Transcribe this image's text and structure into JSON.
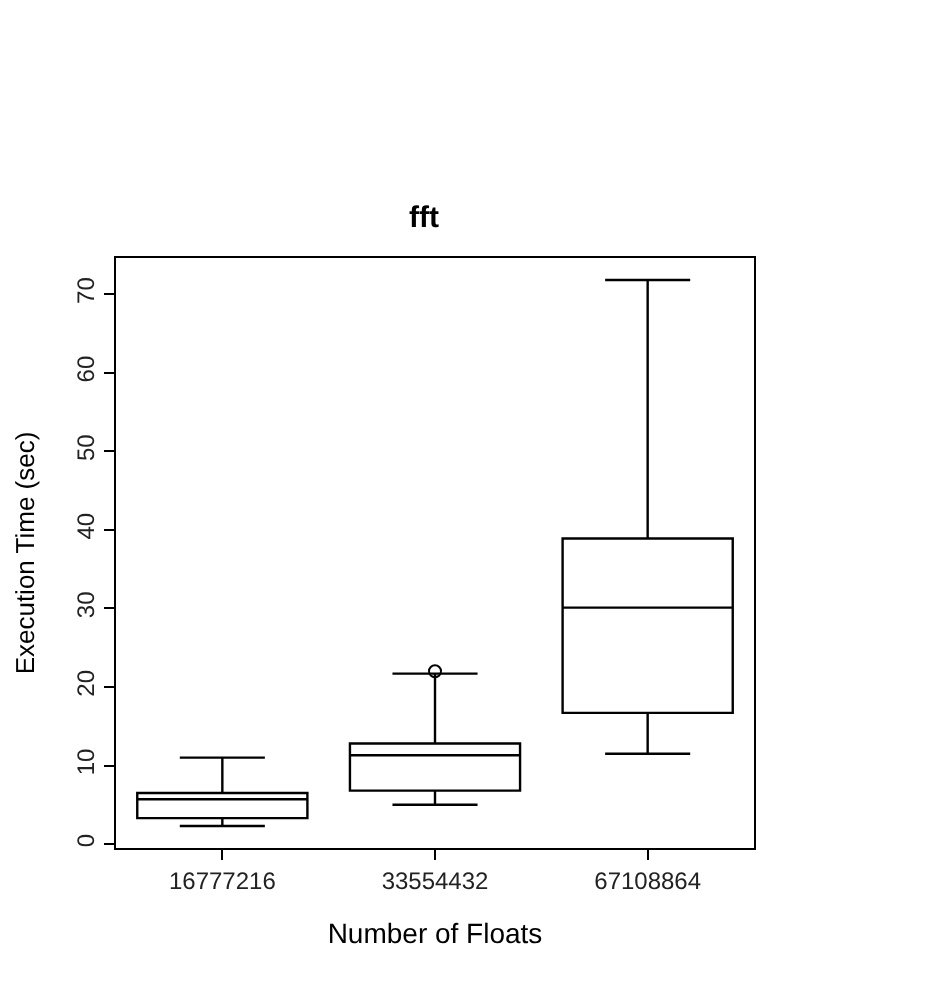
{
  "chart_data": {
    "type": "box",
    "title": "fft",
    "xlabel": "Number of Floats",
    "ylabel": "Execution Time (sec)",
    "categories": [
      "16777216",
      "33554432",
      "67108864"
    ],
    "boxes": [
      {
        "low": 2.3,
        "q1": 3.3,
        "median": 5.7,
        "q3": 6.5,
        "high": 11
      },
      {
        "low": 5,
        "q1": 6.8,
        "median": 11.3,
        "q3": 12.8,
        "high": 21.7,
        "outliers": [
          22
        ]
      },
      {
        "low": 11.5,
        "q1": 16.7,
        "median": 30.1,
        "q3": 38.9,
        "high": 71.8
      }
    ],
    "color": "#000000",
    "ylim": [
      -0.5,
      74.6
    ],
    "yticks": [
      0,
      10,
      20,
      30,
      40,
      50,
      60,
      70
    ]
  }
}
